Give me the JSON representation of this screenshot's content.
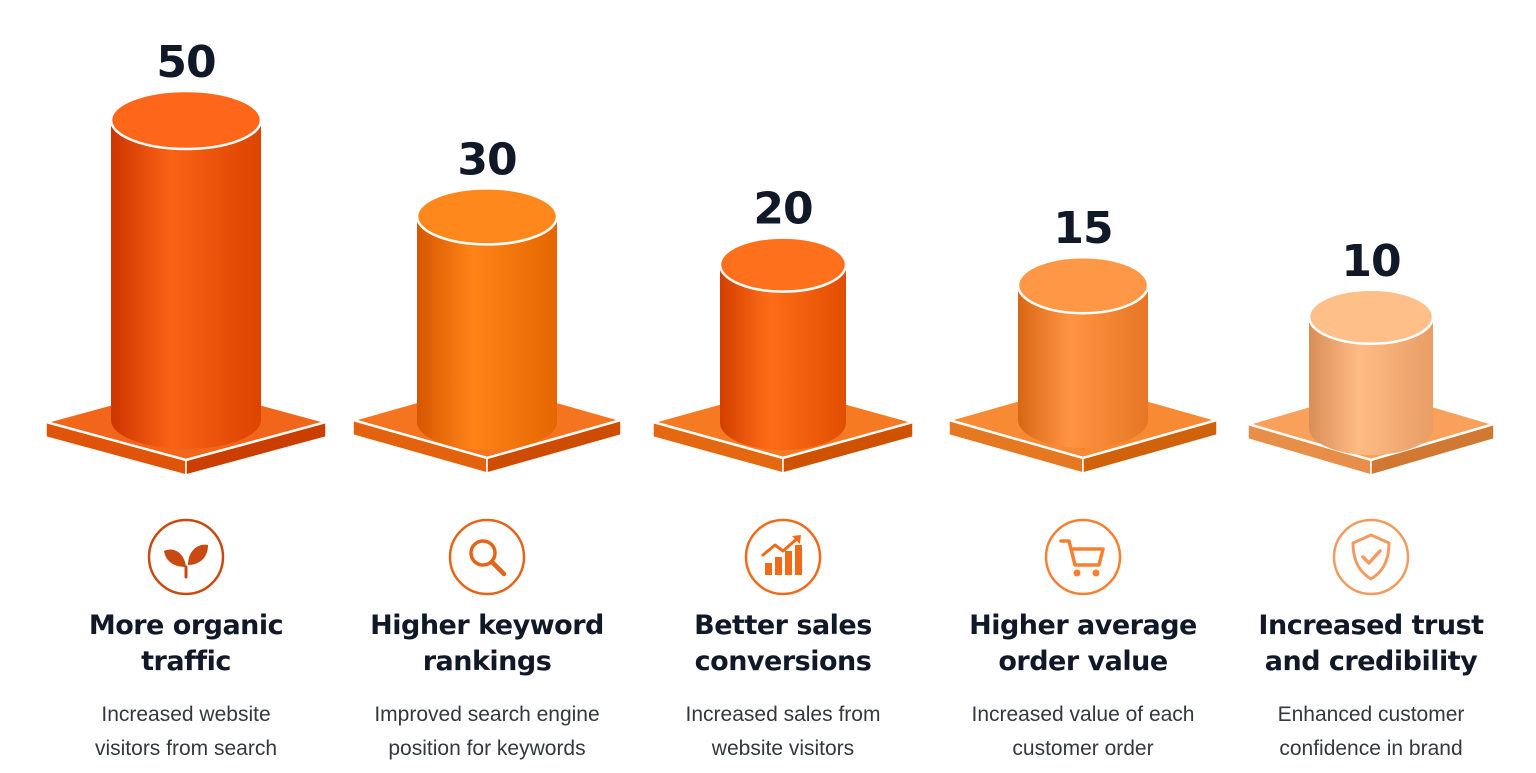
{
  "chart_data": {
    "type": "bar",
    "categories": [
      "More organic traffic",
      "Higher keyword rankings",
      "Better sales conversions",
      "Higher average order value",
      "Increased trust and credibility"
    ],
    "values": [
      50,
      30,
      20,
      15,
      10
    ],
    "value_labels": [
      "50",
      "30",
      "20",
      "15",
      "10"
    ],
    "descriptions": [
      "Increased website visitors from search",
      "Improved search engine position for keywords",
      "Increased sales from website visitors",
      "Increased value of each customer order",
      "Enhanced customer confidence in brand"
    ],
    "icons": [
      "leaf-icon",
      "search-icon",
      "growth-chart-icon",
      "shopping-cart-icon",
      "shield-check-icon"
    ],
    "colors": {
      "bar_fills": [
        "#f0580c",
        "#f97a0e",
        "#f5620e",
        "#fb8a38",
        "#fcb17a"
      ],
      "base_fills": [
        "#f2661c",
        "#f5741f",
        "#f67a22",
        "#f88a33",
        "#f9a05a"
      ],
      "icon_stroke": [
        "#c84a10",
        "#e4641a",
        "#f06a18",
        "#f58030",
        "#f29a60"
      ],
      "title": "#111827",
      "text": "#333840"
    },
    "grid": false,
    "legend": "none"
  }
}
